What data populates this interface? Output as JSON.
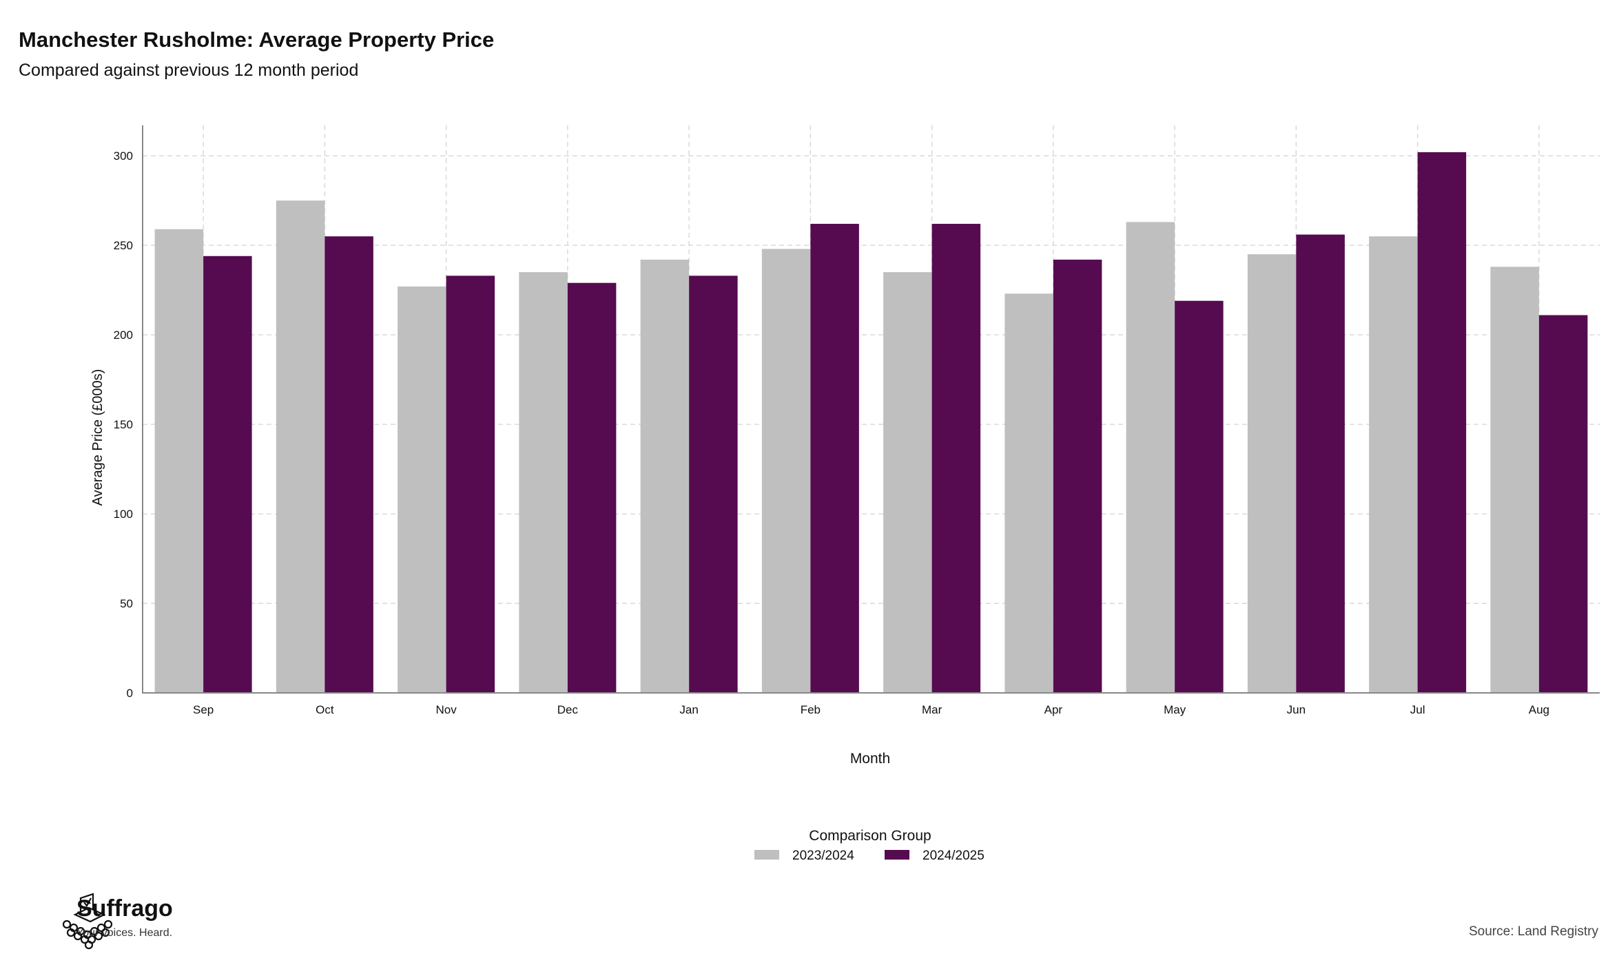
{
  "chart_data": {
    "type": "bar",
    "title": "Manchester Rusholme: Average Property Price",
    "subtitle": "Compared against previous 12 month period",
    "xlabel": "Month",
    "ylabel": "Average Price (£000s)",
    "categories": [
      "Sep",
      "Oct",
      "Nov",
      "Dec",
      "Jan",
      "Feb",
      "Mar",
      "Apr",
      "May",
      "Jun",
      "Jul",
      "Aug"
    ],
    "series": [
      {
        "name": "2023/2024",
        "color": "#bfbfbf",
        "values": [
          259,
          275,
          227,
          235,
          242,
          248,
          235,
          223,
          263,
          245,
          255,
          238
        ]
      },
      {
        "name": "2024/2025",
        "color": "#560b50",
        "values": [
          244,
          255,
          233,
          229,
          233,
          262,
          262,
          242,
          219,
          256,
          302,
          211
        ]
      }
    ],
    "ylim": [
      0,
      317
    ],
    "yticks": [
      0,
      50,
      100,
      150,
      200,
      250,
      300
    ],
    "grid": true,
    "legend_title": "Comparison Group",
    "legend_position": "bottom"
  },
  "brand": {
    "name": "Suffrago",
    "tagline": "Your voices. Heard.",
    "logo_icon": "ballot-box-crowd-icon"
  },
  "source": "Source: Land Registry"
}
